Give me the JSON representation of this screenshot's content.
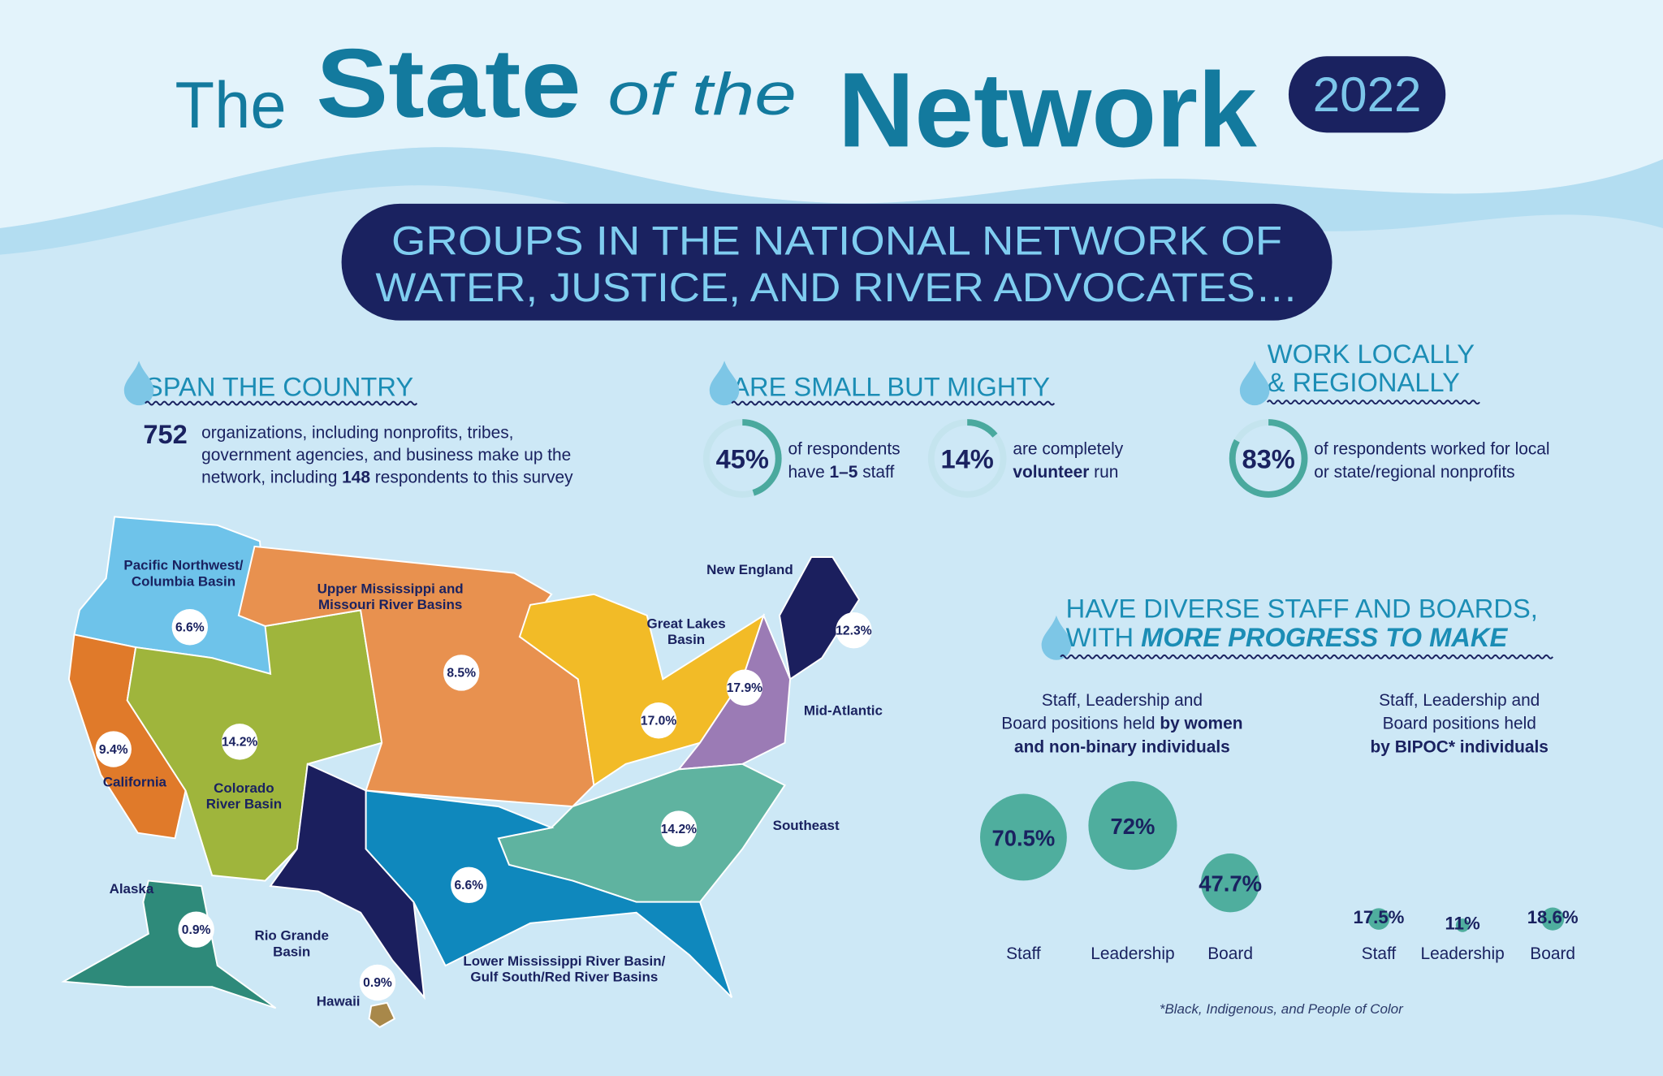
{
  "header": {
    "title_the": "The",
    "title_state": "State",
    "title_of_the": "of the",
    "title_network": "Network",
    "year": "2022"
  },
  "banner": {
    "lines": [
      "GROUPS IN THE NATIONAL NETWORK OF",
      "WATER, JUSTICE, AND RIVER ADVOCATES…"
    ]
  },
  "span": {
    "heading": "SPAN THE COUNTRY",
    "count": "752",
    "lines": [
      [
        {
          "text": "organizations, including nonprofits, tribes,"
        }
      ],
      [
        {
          "text": "government agencies, and business make up the"
        }
      ],
      [
        {
          "text": "network, including "
        },
        {
          "text": "148",
          "bold": true
        },
        {
          "text": " respondents to this survey"
        }
      ]
    ]
  },
  "regions": [
    {
      "name": [
        "Pacific Northwest/",
        "Columbia Basin"
      ],
      "share": "6.6%"
    },
    {
      "name": [
        "California"
      ],
      "share": "9.4%"
    },
    {
      "name": [
        "Colorado",
        "River Basin"
      ],
      "share": "14.2%"
    },
    {
      "name": [
        "Rio Grande",
        "Basin"
      ]
    },
    {
      "name": [
        "Upper Mississippi and",
        "Missouri River Basins"
      ],
      "share": "8.5%"
    },
    {
      "name": [
        "Great Lakes",
        "Basin"
      ],
      "share": "17.0%"
    },
    {
      "name": [
        "Mid-Atlantic"
      ],
      "share": "17.9%"
    },
    {
      "name": [
        "New England"
      ],
      "share": "12.3%"
    },
    {
      "name": [
        "Southeast"
      ],
      "share": "14.2%"
    },
    {
      "name": [
        "Lower Mississippi River Basin/",
        "Gulf South/Red River Basins"
      ],
      "share": "6.6%"
    },
    {
      "name": [
        "Alaska"
      ],
      "share": "0.9%"
    },
    {
      "name": [
        "Hawaii"
      ],
      "share": "0.9%"
    }
  ],
  "small": {
    "heading": "ARE SMALL BUT MIGHTY",
    "stats": [
      {
        "value": 45,
        "label": "45%",
        "lines": [
          [
            {
              "text": "of respondents"
            }
          ],
          [
            {
              "text": "have "
            },
            {
              "text": "1–5",
              "bold": true
            },
            {
              "text": " staff"
            }
          ]
        ]
      },
      {
        "value": 14,
        "label": "14%",
        "lines": [
          [
            {
              "text": "are completely"
            }
          ],
          [
            {
              "text": "volunteer",
              "bold": true
            },
            {
              "text": " run"
            }
          ]
        ]
      }
    ]
  },
  "local": {
    "heading": [
      "WORK LOCALLY",
      "& REGIONALLY"
    ],
    "stats": [
      {
        "value": 83,
        "label": "83%",
        "lines": [
          [
            {
              "text": "of respondents worked for local"
            }
          ],
          [
            {
              "text": "or state/regional nonprofits"
            }
          ]
        ]
      }
    ]
  },
  "diverse": {
    "heading": [
      [
        {
          "text": "HAVE DIVERSE STAFF AND BOARDS,"
        }
      ],
      [
        {
          "text": "WITH "
        },
        {
          "text": "MORE PROGRESS TO MAKE",
          "bold": true,
          "italic": true
        }
      ]
    ],
    "groups": [
      {
        "caption": [
          [
            {
              "text": "Staff, Leadership and"
            }
          ],
          [
            {
              "text": "Board positions held "
            },
            {
              "text": "by women",
              "bold": true
            }
          ],
          [
            {
              "text": "and non-binary individuals",
              "bold": true
            }
          ]
        ],
        "bubbles": [
          {
            "label": "Staff",
            "value": 70.5,
            "value_label": "70.5%"
          },
          {
            "label": "Leadership",
            "value": 72,
            "value_label": "72%"
          },
          {
            "label": "Board",
            "value": 47.7,
            "value_label": "47.7%"
          }
        ]
      },
      {
        "caption": [
          [
            {
              "text": "Staff, Leadership and"
            }
          ],
          [
            {
              "text": "Board positions held"
            }
          ],
          [
            {
              "text": "by BIPOC* individuals",
              "bold": true
            }
          ]
        ],
        "bubbles": [
          {
            "label": "Staff",
            "value": 17.5,
            "value_label": "17.5%"
          },
          {
            "label": "Leadership",
            "value": 11,
            "value_label": "11%"
          },
          {
            "label": "Board",
            "value": 18.6,
            "value_label": "18.6%"
          }
        ]
      }
    ],
    "footnote": "*Black, Indigenous, and People of Color"
  }
}
